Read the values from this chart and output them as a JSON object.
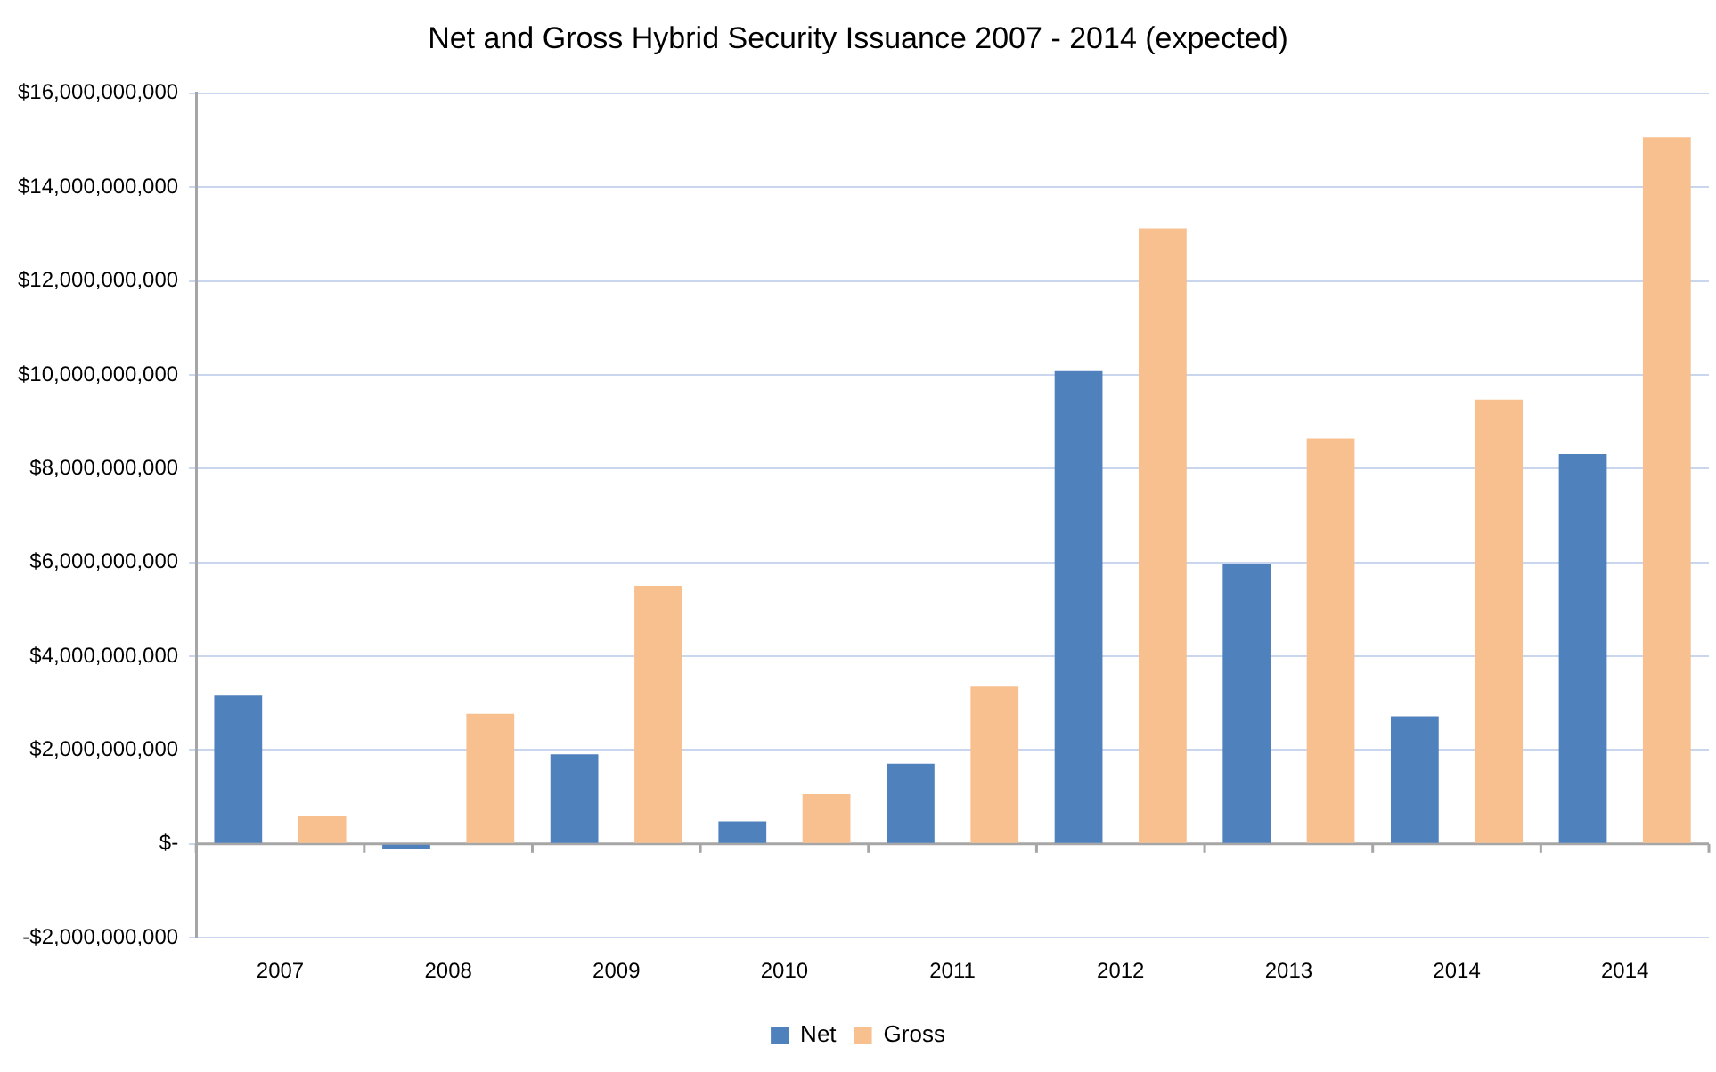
{
  "chart_data": {
    "type": "bar",
    "title": "Net and Gross Hybrid Security Issuance 2007 - 2014 (expected)",
    "categories": [
      "2007",
      "2008",
      "2009",
      "2010",
      "2011",
      "2012",
      "2013",
      "2014",
      "2014"
    ],
    "series": [
      {
        "name": "Net",
        "color": "#4f81bd",
        "values": [
          3160000000,
          -100000000,
          1910000000,
          480000000,
          1710000000,
          10080000000,
          5960000000,
          2720000000,
          8310000000
        ]
      },
      {
        "name": "Gross",
        "color": "#f9c08f",
        "values": [
          590000000,
          2770000000,
          5500000000,
          1060000000,
          3350000000,
          13120000000,
          8640000000,
          9470000000,
          15060000000
        ]
      }
    ],
    "ylim": [
      -2000000000,
      16000000000
    ],
    "yticks": [
      {
        "value": -2000000000,
        "label": "-$2,000,000,000"
      },
      {
        "value": 0,
        "label": "$-"
      },
      {
        "value": 2000000000,
        "label": "$2,000,000,000"
      },
      {
        "value": 4000000000,
        "label": "$4,000,000,000"
      },
      {
        "value": 6000000000,
        "label": "$6,000,000,000"
      },
      {
        "value": 8000000000,
        "label": "$8,000,000,000"
      },
      {
        "value": 10000000000,
        "label": "$10,000,000,000"
      },
      {
        "value": 12000000000,
        "label": "$12,000,000,000"
      },
      {
        "value": 14000000000,
        "label": "$14,000,000,000"
      },
      {
        "value": 16000000000,
        "label": "$16,000,000,000"
      }
    ],
    "grid": "y",
    "legend": "bottom"
  }
}
